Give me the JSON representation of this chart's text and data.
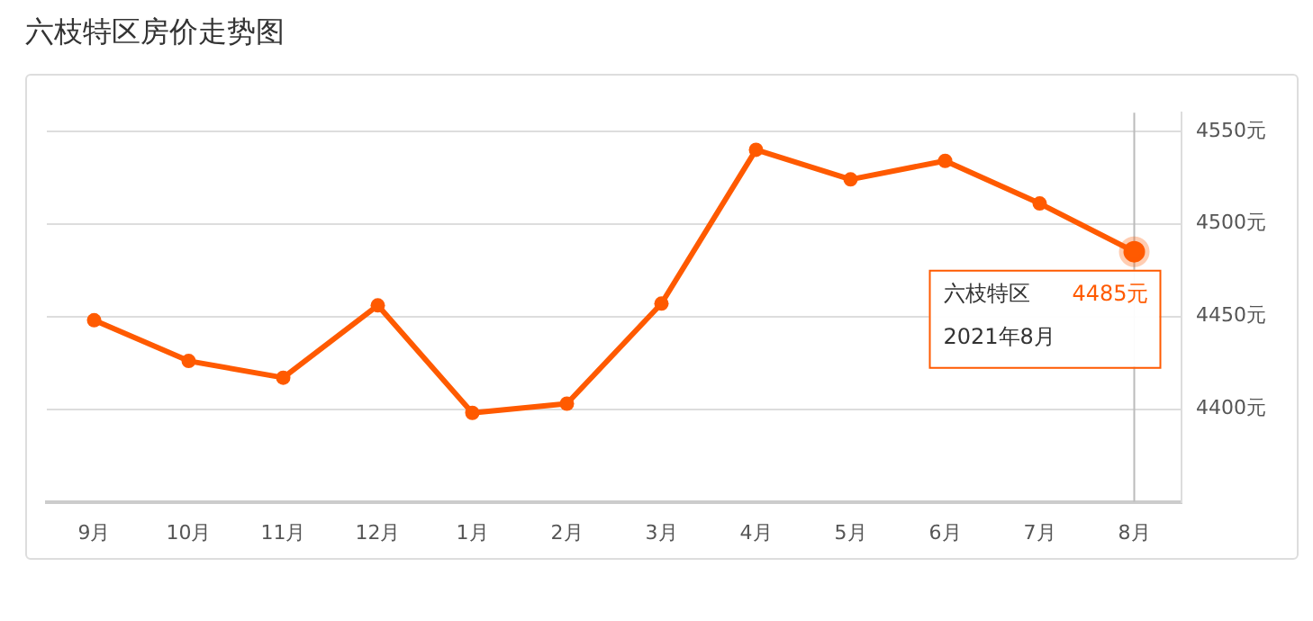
{
  "chart_data": {
    "type": "line",
    "title": "六枝特区房价走势图",
    "categories": [
      "9月",
      "10月",
      "11月",
      "12月",
      "1月",
      "2月",
      "3月",
      "4月",
      "5月",
      "6月",
      "7月",
      "8月"
    ],
    "series": [
      {
        "name": "六枝特区",
        "color": "#ff5a00",
        "values": [
          4448,
          4426,
          4417,
          4456,
          4398,
          4403,
          4457,
          4540,
          4524,
          4534,
          4511,
          4485
        ],
        "value_labels": [
          null,
          null,
          null,
          null,
          null,
          null,
          null,
          null,
          null,
          null,
          null,
          "4485元"
        ]
      }
    ],
    "annotations": [
      "2021年8月"
    ],
    "ref_lines": [
      {
        "axis": "x",
        "value": "8月",
        "color": "#bbbbbb"
      }
    ],
    "ylim": [
      4350,
      4560
    ],
    "yticks": [
      {
        "value": 4400,
        "label": "4400元"
      },
      {
        "value": 4450,
        "label": "4450元"
      },
      {
        "value": 4500,
        "label": "4500元"
      },
      {
        "value": 4550,
        "label": "4550元"
      }
    ],
    "grid": "y",
    "legend": false,
    "marker": "circle",
    "line_style": "solid"
  }
}
